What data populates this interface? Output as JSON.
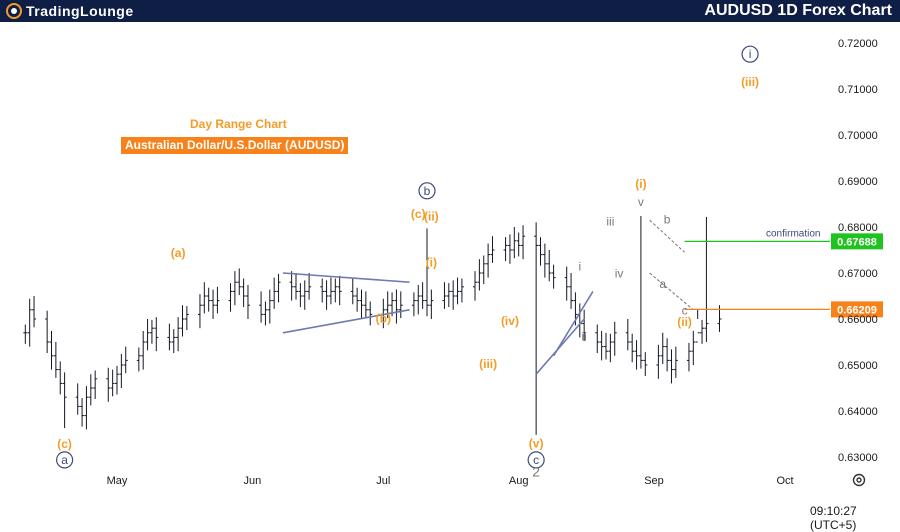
{
  "header": {
    "brand": "TradingLounge",
    "title": "AUDUSD 1D Forex Chart",
    "bg_color": "#0f1e45"
  },
  "annotations": {
    "day_range": "Day Range Chart",
    "pair": "Australian Dollar/U.S.Dollar (AUDUSD)",
    "confirmation": "confirmation"
  },
  "footer": {
    "time": "09:10:27 (UTC+5)",
    "settings_icon": "gear-icon"
  },
  "colors": {
    "orange": "#f39c28",
    "navy": "#3b4a7a",
    "grey": "#7a7a7a",
    "green_line": "#33dd33",
    "orange_line": "#f7821b",
    "price_tag_green": "#1ec31e",
    "price_tag_orange": "#f7821b",
    "candles": "#131722"
  },
  "chart_data": {
    "type": "candlestick",
    "ylim": [
      0.625,
      0.725
    ],
    "yticks": [
      "0.72000",
      "0.71000",
      "0.70000",
      "0.69000",
      "0.68000",
      "0.67000",
      "0.66000",
      "0.65000",
      "0.64000",
      "0.63000"
    ],
    "xticks": [
      {
        "label": "May",
        "date": "2024-05-01"
      },
      {
        "label": "Jun",
        "date": "2024-06-01"
      },
      {
        "label": "Jul",
        "date": "2024-07-01"
      },
      {
        "label": "Aug",
        "date": "2024-08-01"
      },
      {
        "label": "Sep",
        "date": "2024-09-01"
      },
      {
        "label": "Oct",
        "date": "2024-10-01"
      }
    ],
    "start_date": "2024-04-10",
    "end_date": "2024-09-16",
    "closes": [
      0.657,
      0.662,
      0.66,
      0.655,
      0.652,
      0.649,
      0.646,
      0.643,
      0.641,
      0.639,
      0.643,
      0.645,
      0.647,
      0.645,
      0.646,
      0.648,
      0.65,
      0.651,
      0.652,
      0.655,
      0.657,
      0.658,
      0.656,
      0.655,
      0.656,
      0.658,
      0.66,
      0.661,
      0.663,
      0.665,
      0.664,
      0.663,
      0.664,
      0.666,
      0.668,
      0.667,
      0.665,
      0.663,
      0.661,
      0.662,
      0.664,
      0.666,
      0.668,
      0.667,
      0.666,
      0.665,
      0.666,
      0.667,
      0.666,
      0.665,
      0.666,
      0.667,
      0.666,
      0.665,
      0.664,
      0.663,
      0.662,
      0.661,
      0.662,
      0.663,
      0.664,
      0.662,
      0.663,
      0.664,
      0.665,
      0.664,
      0.663,
      0.664,
      0.665,
      0.666,
      0.665,
      0.666,
      0.667,
      0.668,
      0.67,
      0.672,
      0.674,
      0.675,
      0.676,
      0.675,
      0.677,
      0.676,
      0.678,
      0.676,
      0.674,
      0.672,
      0.67,
      0.669,
      0.667,
      0.664,
      0.661,
      0.659,
      0.657,
      0.655,
      0.654,
      0.653,
      0.655,
      0.657,
      0.655,
      0.653,
      0.652,
      0.651,
      0.65,
      0.652,
      0.654,
      0.651,
      0.649,
      0.651,
      0.653,
      0.655,
      0.657,
      0.658,
      0.659,
      0.66,
      0.662,
      0.664,
      0.665,
      0.667,
      0.669,
      0.671,
      0.673,
      0.675,
      0.676,
      0.678,
      0.679,
      0.678,
      0.679,
      0.68,
      0.681,
      0.679,
      0.677,
      0.675,
      0.672,
      0.67,
      0.668,
      0.666,
      0.665,
      0.665,
      0.667,
      0.669,
      0.671,
      0.673,
      0.675,
      0.676,
      0.677
    ],
    "lows_extra": {
      "0.6363": "2024-04-19",
      "0.6348": "2024-08-05",
      "0.6622": "2024-09-11"
    },
    "highs_extra": {
      "0.6797": "2024-07-11",
      "0.6824": "2024-08-29",
      "0.6822": "2024-09-13"
    },
    "levels": [
      {
        "value": 0.67688,
        "label": "0.67688",
        "color": "#1ec31e",
        "text": "confirmation"
      },
      {
        "value": 0.66209,
        "label": "0.66209",
        "color": "#f7821b"
      }
    ],
    "wave_labels": [
      {
        "text": "(a)",
        "date": "2024-05-15",
        "price": 0.6735,
        "color": "orange"
      },
      {
        "text": "(b)",
        "date": "2024-07-01",
        "price": 0.6592,
        "color": "orange"
      },
      {
        "text": "(c)",
        "date": "2024-04-19",
        "price": 0.632,
        "color": "orange"
      },
      {
        "text": "a",
        "date": "2024-04-19",
        "price": 0.6285,
        "color": "navy",
        "circled": true
      },
      {
        "text": "b",
        "date": "2024-07-11",
        "price": 0.687,
        "color": "navy",
        "circled": true
      },
      {
        "text": "(c)",
        "date": "2024-07-09",
        "price": 0.682,
        "color": "orange"
      },
      {
        "text": "(ii)",
        "date": "2024-07-12",
        "price": 0.6814,
        "color": "orange"
      },
      {
        "text": "(i)",
        "date": "2024-07-12",
        "price": 0.6714,
        "color": "orange"
      },
      {
        "text": "(iii)",
        "date": "2024-07-25",
        "price": 0.6493,
        "color": "orange"
      },
      {
        "text": "(iv)",
        "date": "2024-07-30",
        "price": 0.6587,
        "color": "orange"
      },
      {
        "text": "(v)",
        "date": "2024-08-05",
        "price": 0.6321,
        "color": "orange"
      },
      {
        "text": "c",
        "date": "2024-08-05",
        "price": 0.6285,
        "color": "navy",
        "circled": true
      },
      {
        "text": "2",
        "date": "2024-08-05",
        "price": 0.6258,
        "color": "grey"
      },
      {
        "text": "i",
        "date": "2024-08-15",
        "price": 0.6705,
        "color": "grey"
      },
      {
        "text": "ii",
        "date": "2024-08-16",
        "price": 0.6553,
        "color": "grey"
      },
      {
        "text": "iii",
        "date": "2024-08-22",
        "price": 0.6803,
        "color": "grey"
      },
      {
        "text": "iv",
        "date": "2024-08-24",
        "price": 0.669,
        "color": "grey"
      },
      {
        "text": "v",
        "date": "2024-08-29",
        "price": 0.6846,
        "color": "grey"
      },
      {
        "text": "(i)",
        "date": "2024-08-29",
        "price": 0.6885,
        "color": "orange"
      },
      {
        "text": "b",
        "date": "2024-09-04",
        "price": 0.6808,
        "color": "grey"
      },
      {
        "text": "a",
        "date": "2024-09-03",
        "price": 0.6667,
        "color": "grey"
      },
      {
        "text": "c",
        "date": "2024-09-08",
        "price": 0.661,
        "color": "grey"
      },
      {
        "text": "(ii)",
        "date": "2024-09-08",
        "price": 0.6585,
        "color": "orange"
      },
      {
        "text": "i",
        "date": "2024-09-23",
        "price": 0.7167,
        "color": "navy",
        "circled": true
      },
      {
        "text": "(iii)",
        "date": "2024-09-23",
        "price": 0.7106,
        "color": "orange"
      }
    ]
  }
}
